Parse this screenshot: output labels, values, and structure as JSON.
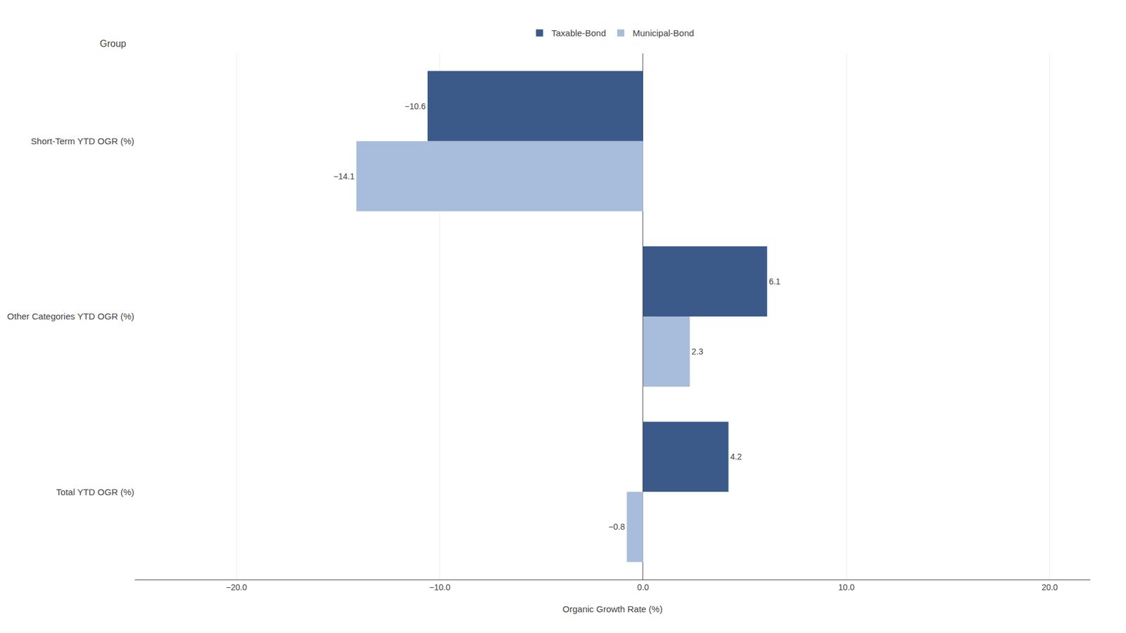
{
  "chart_data": {
    "type": "bar",
    "orientation": "horizontal",
    "categories": [
      "Short-Term YTD OGR (%)",
      "Other Categories YTD OGR (%)",
      "Total YTD OGR (%)"
    ],
    "series": [
      {
        "name": "Taxable-Bond",
        "color": "#3B5A8A",
        "values": [
          -10.6,
          6.1,
          4.2
        ],
        "value_labels": [
          "−10.6",
          "6.1",
          "4.2"
        ]
      },
      {
        "name": "Municipal-Bond",
        "color": "#A8BCDB",
        "values": [
          -14.1,
          2.3,
          -0.8
        ],
        "value_labels": [
          "−14.1",
          "2.3",
          "−0.8"
        ]
      }
    ],
    "xlabel": "Organic Growth Rate (%)",
    "ylabel": "Group",
    "xlim": [
      -25,
      22
    ],
    "xticks": [
      {
        "value": -20,
        "label": "−20.0"
      },
      {
        "value": -10,
        "label": "−10.0"
      },
      {
        "value": 0,
        "label": "0.0"
      },
      {
        "value": 10,
        "label": "10.0"
      },
      {
        "value": 20,
        "label": "20.0"
      }
    ],
    "grid": true,
    "legend": "top",
    "data_labels": true
  }
}
